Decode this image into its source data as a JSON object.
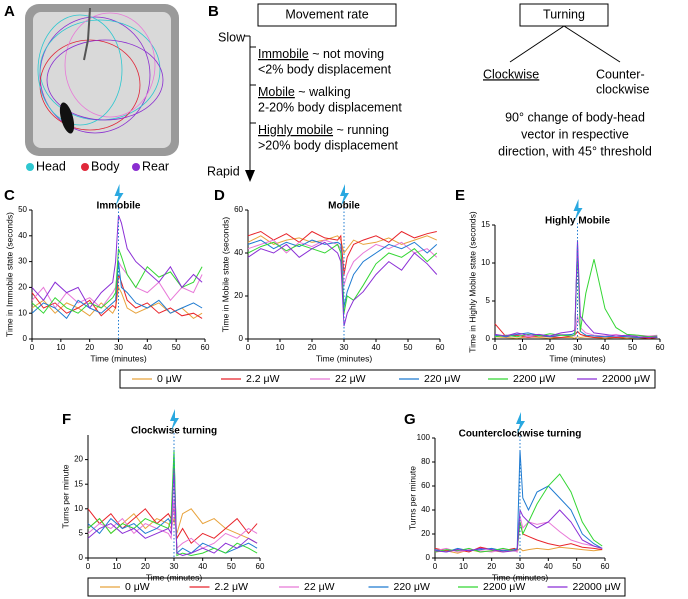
{
  "panel_labels": [
    "A",
    "B",
    "C",
    "D",
    "E",
    "F",
    "G"
  ],
  "panel_a": {
    "legend": [
      {
        "label": "Head",
        "color": "#2ec7d0"
      },
      {
        "label": "Body",
        "color": "#e0283a"
      },
      {
        "label": "Rear",
        "color": "#8a2ed0"
      }
    ]
  },
  "panel_b": {
    "movement_title": "Movement rate",
    "slow": "Slow",
    "rapid": "Rapid",
    "states": [
      {
        "name": "Immobile",
        "desc": " ~ not moving",
        "detail": "<2% body displacement"
      },
      {
        "name": "Mobile",
        "desc": " ~ walking",
        "detail": "2-20% body displacement"
      },
      {
        "name": "Highly mobile",
        "desc": " ~ running",
        "detail": ">20% body displacement"
      }
    ],
    "turning_title": "Turning",
    "clockwise": "Clockwise",
    "counter_1": "Counter-",
    "counter_2": "clockwise",
    "definition": [
      "90° change of body-head",
      "vector in respective",
      "direction, with 45° threshold"
    ]
  },
  "chart_data": [
    {
      "type": "line",
      "title": "Immobile",
      "x_label": "Time (minutes)",
      "y_label": "Time in Immobile state (seconds)",
      "x": [
        0,
        4,
        8,
        12,
        16,
        20,
        24,
        28,
        29,
        30,
        31,
        33,
        36,
        40,
        44,
        48,
        52,
        56,
        59
      ],
      "event_x": 30,
      "xlim": [
        0,
        60
      ],
      "xticks": [
        0,
        10,
        20,
        30,
        40,
        50,
        60
      ],
      "ylim": [
        0,
        50
      ],
      "yticks": [
        0,
        10,
        20,
        30,
        40,
        50
      ],
      "series": [
        {
          "name": "0 μW",
          "color": "#e8a33d",
          "values": [
            12,
            15,
            10,
            14,
            12,
            9,
            14,
            10,
            12,
            20,
            18,
            12,
            10,
            12,
            14,
            10,
            12,
            8,
            10
          ]
        },
        {
          "name": "2.2 μW",
          "color": "#e8232a",
          "values": [
            18,
            12,
            14,
            10,
            12,
            15,
            9,
            13,
            12,
            25,
            22,
            15,
            12,
            14,
            10,
            12,
            9,
            10,
            8
          ]
        },
        {
          "name": "22 μW",
          "color": "#e879d8",
          "values": [
            15,
            20,
            12,
            18,
            14,
            16,
            12,
            18,
            20,
            30,
            28,
            25,
            20,
            18,
            22,
            15,
            20,
            18,
            25
          ]
        },
        {
          "name": "220 μW",
          "color": "#1f7bd1",
          "values": [
            10,
            14,
            12,
            8,
            15,
            12,
            10,
            14,
            15,
            30,
            20,
            18,
            14,
            12,
            15,
            10,
            12,
            14,
            12
          ]
        },
        {
          "name": "2200 μW",
          "color": "#33d633",
          "values": [
            14,
            10,
            16,
            12,
            10,
            14,
            12,
            16,
            18,
            35,
            32,
            25,
            20,
            28,
            24,
            26,
            20,
            22,
            28
          ]
        },
        {
          "name": "22000 μW",
          "color": "#8b2fd6",
          "values": [
            20,
            15,
            22,
            18,
            20,
            12,
            18,
            22,
            30,
            48,
            45,
            35,
            30,
            26,
            22,
            28,
            20,
            25,
            22
          ]
        }
      ]
    },
    {
      "type": "line",
      "title": "Mobile",
      "x_label": "Time (minutes)",
      "y_label": "Time in Mobile state (seconds)",
      "x": [
        0,
        4,
        8,
        12,
        16,
        20,
        24,
        28,
        29,
        30,
        31,
        33,
        36,
        40,
        44,
        48,
        52,
        56,
        59
      ],
      "event_x": 30,
      "xlim": [
        0,
        60
      ],
      "xticks": [
        0,
        10,
        20,
        30,
        40,
        50,
        60
      ],
      "ylim": [
        0,
        60
      ],
      "yticks": [
        0,
        20,
        40,
        60
      ],
      "series": [
        {
          "name": "0 μW",
          "color": "#e8a33d",
          "values": [
            45,
            48,
            44,
            46,
            47,
            45,
            46,
            48,
            46,
            40,
            42,
            46,
            44,
            45,
            47,
            44,
            46,
            48,
            46
          ]
        },
        {
          "name": "2.2 μW",
          "color": "#e8232a",
          "values": [
            48,
            50,
            46,
            49,
            45,
            50,
            47,
            46,
            48,
            30,
            38,
            44,
            46,
            48,
            45,
            50,
            47,
            49,
            50
          ]
        },
        {
          "name": "22 μW",
          "color": "#e879d8",
          "values": [
            42,
            44,
            46,
            40,
            45,
            43,
            46,
            44,
            42,
            25,
            30,
            36,
            40,
            44,
            42,
            45,
            40,
            42,
            38
          ]
        },
        {
          "name": "220 μW",
          "color": "#1f7bd1",
          "values": [
            44,
            46,
            42,
            45,
            43,
            46,
            44,
            45,
            44,
            15,
            22,
            30,
            36,
            40,
            44,
            42,
            45,
            40,
            44
          ]
        },
        {
          "name": "2200 μW",
          "color": "#33d633",
          "values": [
            40,
            43,
            45,
            41,
            44,
            42,
            40,
            44,
            40,
            12,
            20,
            18,
            25,
            35,
            40,
            38,
            42,
            36,
            40
          ]
        },
        {
          "name": "22000 μW",
          "color": "#8b2fd6",
          "values": [
            38,
            42,
            40,
            44,
            38,
            42,
            45,
            40,
            36,
            6,
            12,
            18,
            22,
            30,
            36,
            32,
            40,
            35,
            30
          ]
        }
      ]
    },
    {
      "type": "line",
      "title": "Highly Mobile",
      "x_label": "Time (minutes)",
      "y_label": "Time in Highly Mobile state (seconds)",
      "x": [
        0,
        4,
        8,
        12,
        16,
        20,
        24,
        28,
        29,
        30,
        31,
        33,
        36,
        40,
        44,
        48,
        52,
        56,
        59
      ],
      "event_x": 30,
      "xlim": [
        0,
        60
      ],
      "xticks": [
        0,
        10,
        20,
        30,
        40,
        50,
        60
      ],
      "ylim": [
        0,
        15
      ],
      "yticks": [
        0,
        5,
        10,
        15
      ],
      "series": [
        {
          "name": "0 μW",
          "color": "#e8a33d",
          "values": [
            0.3,
            0.2,
            0.1,
            0.3,
            0.2,
            0.1,
            0.2,
            0.2,
            0.1,
            0.3,
            0.2,
            0.3,
            0.2,
            0.1,
            0.2,
            0.1,
            0.2,
            0.1,
            0.2
          ]
        },
        {
          "name": "2.2 μW",
          "color": "#e8232a",
          "values": [
            2,
            0.3,
            0.5,
            0.2,
            0.4,
            0.3,
            0.2,
            0.4,
            0.5,
            1,
            0.6,
            0.4,
            0.2,
            0.3,
            0.2,
            0.3,
            0.2,
            0.1,
            0.2
          ]
        },
        {
          "name": "22 μW",
          "color": "#e879d8",
          "values": [
            0.4,
            0.5,
            0.6,
            0.3,
            0.5,
            0.4,
            0.6,
            0.5,
            0.4,
            3,
            1.5,
            0.8,
            0.5,
            0.4,
            0.6,
            0.3,
            0.5,
            0.4,
            0.5
          ]
        },
        {
          "name": "220 μW",
          "color": "#1f7bd1",
          "values": [
            0.5,
            0.3,
            0.6,
            0.8,
            0.5,
            0.3,
            0.5,
            0.6,
            0.8,
            12.5,
            1,
            0.5,
            0.4,
            0.3,
            0.4,
            0.3,
            0.2,
            0.3,
            0.2
          ]
        },
        {
          "name": "2200 μW",
          "color": "#33d633",
          "values": [
            0.3,
            0.5,
            0.3,
            0.6,
            0.4,
            0.7,
            0.5,
            0.4,
            0.6,
            12,
            1,
            6,
            10.5,
            4,
            1.5,
            0.6,
            0.5,
            0.3,
            0.4
          ]
        },
        {
          "name": "22000 μW",
          "color": "#8b2fd6",
          "values": [
            0.6,
            0.4,
            0.8,
            0.5,
            0.6,
            0.4,
            0.8,
            1,
            1.2,
            13,
            3,
            2,
            0.8,
            0.6,
            0.4,
            0.5,
            0.3,
            0.2,
            0.3
          ]
        }
      ]
    },
    {
      "type": "line",
      "title": "Clockwise turning",
      "x_label": "Time (minutes)",
      "y_label": "Turns per minute",
      "x": [
        0,
        4,
        8,
        12,
        16,
        20,
        24,
        28,
        29,
        30,
        31,
        33,
        36,
        40,
        44,
        48,
        52,
        56,
        59
      ],
      "event_x": 30,
      "xlim": [
        0,
        60
      ],
      "xticks": [
        0,
        10,
        20,
        30,
        40,
        50,
        60
      ],
      "ylim": [
        0,
        25
      ],
      "yticks": [
        0,
        5,
        10,
        15,
        20
      ],
      "series": [
        {
          "name": "0 μW",
          "color": "#e8a33d",
          "values": [
            6,
            8,
            5,
            7,
            9,
            6,
            8,
            7,
            6,
            8,
            5,
            9,
            10,
            7,
            8,
            6,
            5,
            4,
            3
          ]
        },
        {
          "name": "2.2 μW",
          "color": "#e8232a",
          "values": [
            10,
            7,
            9,
            6,
            8,
            10,
            7,
            9,
            8,
            10,
            4,
            6,
            3,
            5,
            4,
            6,
            8,
            5,
            7
          ]
        },
        {
          "name": "22 μW",
          "color": "#e879d8",
          "values": [
            5,
            7,
            6,
            8,
            5,
            7,
            6,
            5,
            4,
            12,
            2,
            3,
            4,
            2,
            3,
            5,
            4,
            6,
            5
          ]
        },
        {
          "name": "220 μW",
          "color": "#1f7bd1",
          "values": [
            7,
            5,
            8,
            6,
            7,
            5,
            6,
            8,
            7,
            21,
            1,
            2,
            1,
            3,
            2,
            1,
            2,
            3,
            2
          ]
        },
        {
          "name": "2200 μW",
          "color": "#33d633",
          "values": [
            6,
            8,
            5,
            7,
            6,
            8,
            7,
            6,
            8,
            22,
            0.5,
            1,
            0.5,
            1,
            2,
            1,
            3,
            2,
            1
          ]
        },
        {
          "name": "22000 μW",
          "color": "#8b2fd6",
          "values": [
            4,
            6,
            7,
            5,
            6,
            4,
            5,
            6,
            5,
            18,
            1,
            0.5,
            1,
            2,
            1,
            3,
            2,
            4,
            3
          ]
        }
      ]
    },
    {
      "type": "line",
      "title": "Counterclockwise turning",
      "x_label": "Time (minutes)",
      "y_label": "Turns per minute",
      "x": [
        0,
        4,
        8,
        12,
        16,
        20,
        24,
        28,
        29,
        30,
        31,
        33,
        36,
        40,
        44,
        48,
        52,
        56,
        59
      ],
      "event_x": 30,
      "xlim": [
        0,
        60
      ],
      "xticks": [
        0,
        10,
        20,
        30,
        40,
        50,
        60
      ],
      "ylim": [
        0,
        100
      ],
      "yticks": [
        0,
        20,
        40,
        60,
        80,
        100
      ],
      "series": [
        {
          "name": "0 μW",
          "color": "#e8a33d",
          "values": [
            5,
            6,
            4,
            7,
            5,
            6,
            5,
            7,
            6,
            8,
            6,
            7,
            8,
            7,
            9,
            8,
            7,
            6,
            7
          ]
        },
        {
          "name": "2.2 μW",
          "color": "#e8232a",
          "values": [
            8,
            6,
            7,
            5,
            9,
            7,
            6,
            8,
            7,
            30,
            20,
            18,
            15,
            12,
            10,
            12,
            9,
            8,
            7
          ]
        },
        {
          "name": "22 μW",
          "color": "#e879d8",
          "values": [
            6,
            8,
            5,
            7,
            6,
            5,
            7,
            6,
            5,
            35,
            25,
            30,
            28,
            30,
            22,
            15,
            12,
            10,
            8
          ]
        },
        {
          "name": "220 μW",
          "color": "#1f7bd1",
          "values": [
            7,
            5,
            8,
            6,
            7,
            8,
            6,
            7,
            8,
            90,
            50,
            40,
            55,
            60,
            50,
            40,
            20,
            12,
            8
          ]
        },
        {
          "name": "2200 μW",
          "color": "#33d633",
          "values": [
            5,
            7,
            6,
            8,
            5,
            6,
            8,
            6,
            7,
            30,
            20,
            30,
            45,
            60,
            70,
            55,
            30,
            15,
            10
          ]
        },
        {
          "name": "22000 μW",
          "color": "#8b2fd6",
          "values": [
            6,
            5,
            7,
            6,
            8,
            7,
            5,
            6,
            7,
            40,
            35,
            30,
            25,
            30,
            40,
            30,
            15,
            10,
            8
          ]
        }
      ]
    }
  ]
}
